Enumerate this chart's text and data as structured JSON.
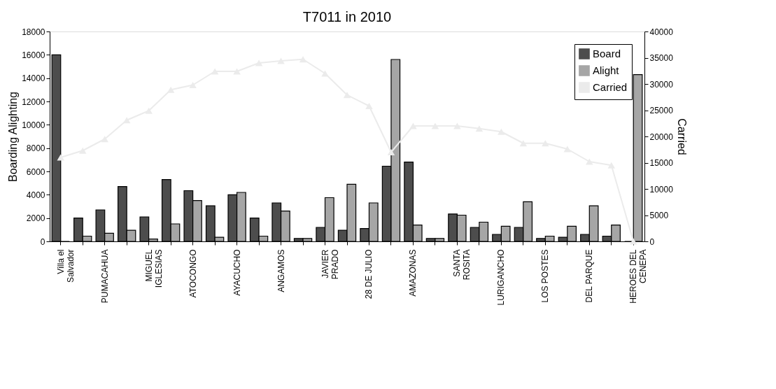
{
  "chart_data": {
    "type": "bar",
    "title": "T7011 in 2010",
    "ylabel": "Boarding Alighting",
    "y2label": "Carried",
    "categories": [
      "Villa el Salvador",
      null,
      "PUMACAHUA",
      null,
      "MIGUEL IGLESIAS",
      null,
      "ATOCONGO",
      null,
      "AYACUCHO",
      null,
      "ANGAMOS",
      null,
      "JAVIER PRADO",
      null,
      "28 DE JULIO",
      null,
      "AMAZONAS",
      null,
      "SANTA ROSITA",
      null,
      "LURIGANCHO",
      null,
      "LOS POSTES",
      null,
      "DEL PARQUE",
      null,
      "HEROES DEL CENEPA"
    ],
    "series": [
      {
        "name": "Board",
        "color": "#4d4d4d",
        "values": [
          16000,
          2000,
          2700,
          4700,
          2100,
          5300,
          4350,
          3050,
          4000,
          2000,
          3300,
          250,
          1200,
          950,
          1100,
          6450,
          6800,
          250,
          2350,
          1200,
          600,
          1200,
          250,
          350,
          600,
          450,
          0
        ]
      },
      {
        "name": "Alight",
        "color": "#a6a6a6",
        "values": [
          0,
          450,
          700,
          950,
          200,
          1500,
          3500,
          350,
          4200,
          450,
          2600,
          250,
          3750,
          4900,
          3300,
          15600,
          1400,
          250,
          2250,
          1650,
          1300,
          3400,
          450,
          1300,
          3050,
          1400,
          14300
        ]
      },
      {
        "name": "Carried",
        "type": "line",
        "axis": "y2",
        "color": "#ebebeb",
        "marker": "triangle",
        "values": [
          16000,
          17300,
          19500,
          23100,
          24900,
          28900,
          29800,
          32400,
          32400,
          34000,
          34400,
          34700,
          32000,
          27900,
          25800,
          17000,
          22000,
          22000,
          22000,
          21500,
          20900,
          18700,
          18700,
          17600,
          15200,
          14500,
          0
        ]
      }
    ],
    "ylim": [
      0,
      18000
    ],
    "yticks": [
      0,
      2000,
      4000,
      6000,
      8000,
      10000,
      12000,
      14000,
      16000,
      18000
    ],
    "y2lim": [
      0,
      40000
    ],
    "y2ticks": [
      0,
      5000,
      10000,
      15000,
      20000,
      25000,
      30000,
      35000,
      40000
    ],
    "grid": false,
    "legend": "top right"
  }
}
